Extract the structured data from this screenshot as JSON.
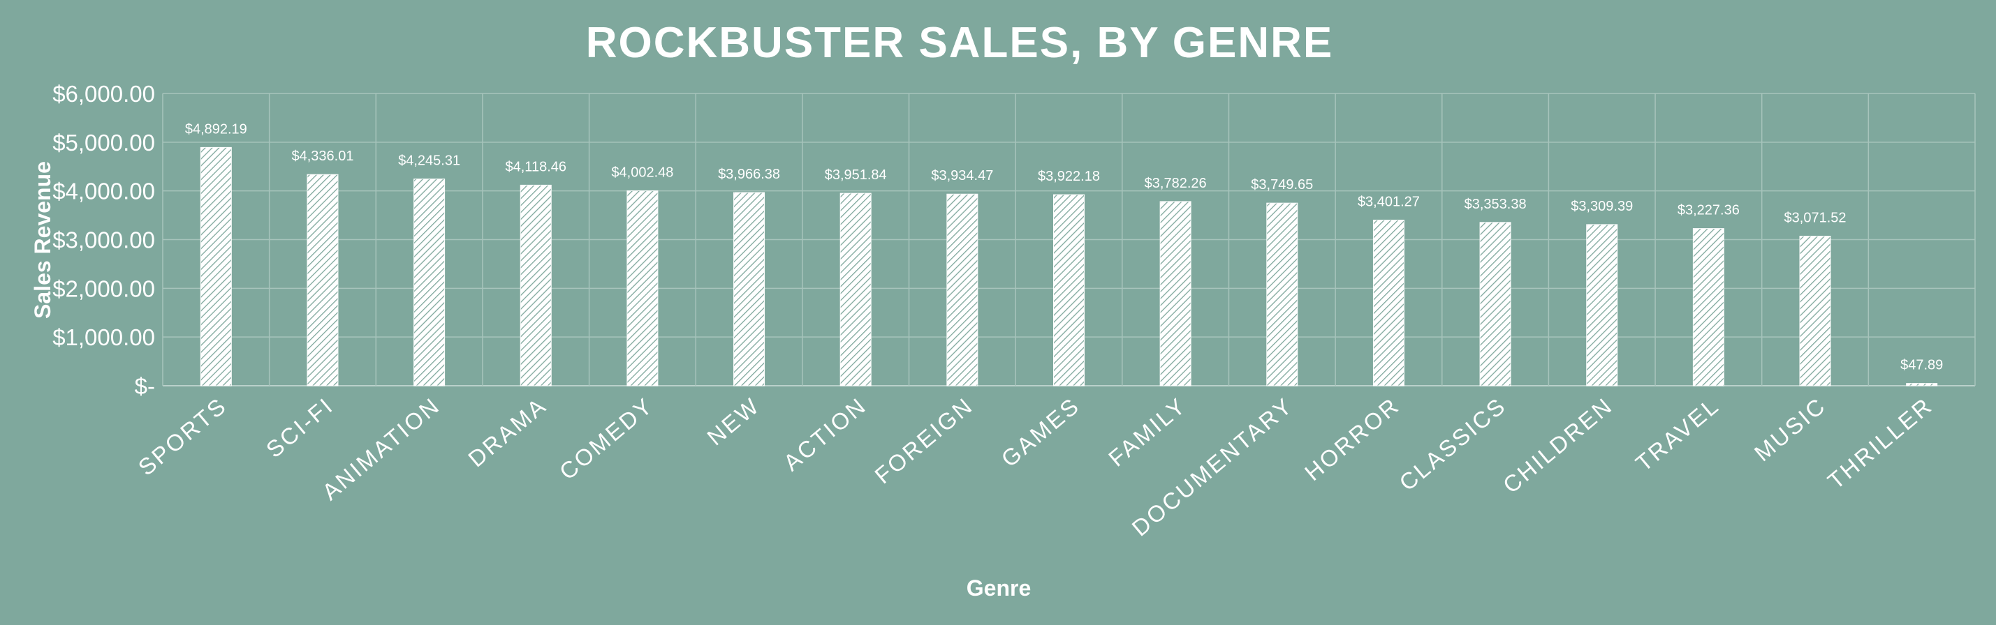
{
  "chart_data": {
    "type": "bar",
    "title": "ROCKBUSTER SALES, BY GENRE",
    "xlabel": "Genre",
    "ylabel": "Sales Revenue",
    "ylim": [
      0,
      6000
    ],
    "yticks": [
      0,
      1000,
      2000,
      3000,
      4000,
      5000,
      6000
    ],
    "ytick_labels": [
      "$-",
      "$1,000.00",
      "$2,000.00",
      "$3,000.00",
      "$4,000.00",
      "$5,000.00",
      "$6,000.00"
    ],
    "grid": true,
    "categories": [
      "SPORTS",
      "SCI-FI",
      "ANIMATION",
      "DRAMA",
      "COMEDY",
      "NEW",
      "ACTION",
      "FOREIGN",
      "GAMES",
      "FAMILY",
      "DOCUMENTARY",
      "HORROR",
      "CLASSICS",
      "CHILDREN",
      "TRAVEL",
      "MUSIC",
      "THRILLER"
    ],
    "values": [
      4892.19,
      4336.01,
      4245.31,
      4118.46,
      4002.48,
      3966.38,
      3951.84,
      3934.47,
      3922.18,
      3782.26,
      3749.65,
      3401.27,
      3353.38,
      3309.39,
      3227.36,
      3071.52,
      47.89
    ],
    "data_labels": [
      "$4,892.19",
      "$4,336.01",
      "$4,245.31",
      "$4,118.46",
      "$4,002.48",
      "$3,966.38",
      "$3,951.84",
      "$3,934.47",
      "$3,922.18",
      "$3,782.26",
      "$3,749.65",
      "$3,401.27",
      "$3,353.38",
      "$3,309.39",
      "$3,227.36",
      "$3,071.52",
      "$47.89"
    ]
  },
  "colors": {
    "background": "#7fa89d",
    "bar_fill": "#ffffff",
    "bar_hatch": "#7fa89d",
    "gridline": "#a7c4bc",
    "text": "#ffffff"
  }
}
